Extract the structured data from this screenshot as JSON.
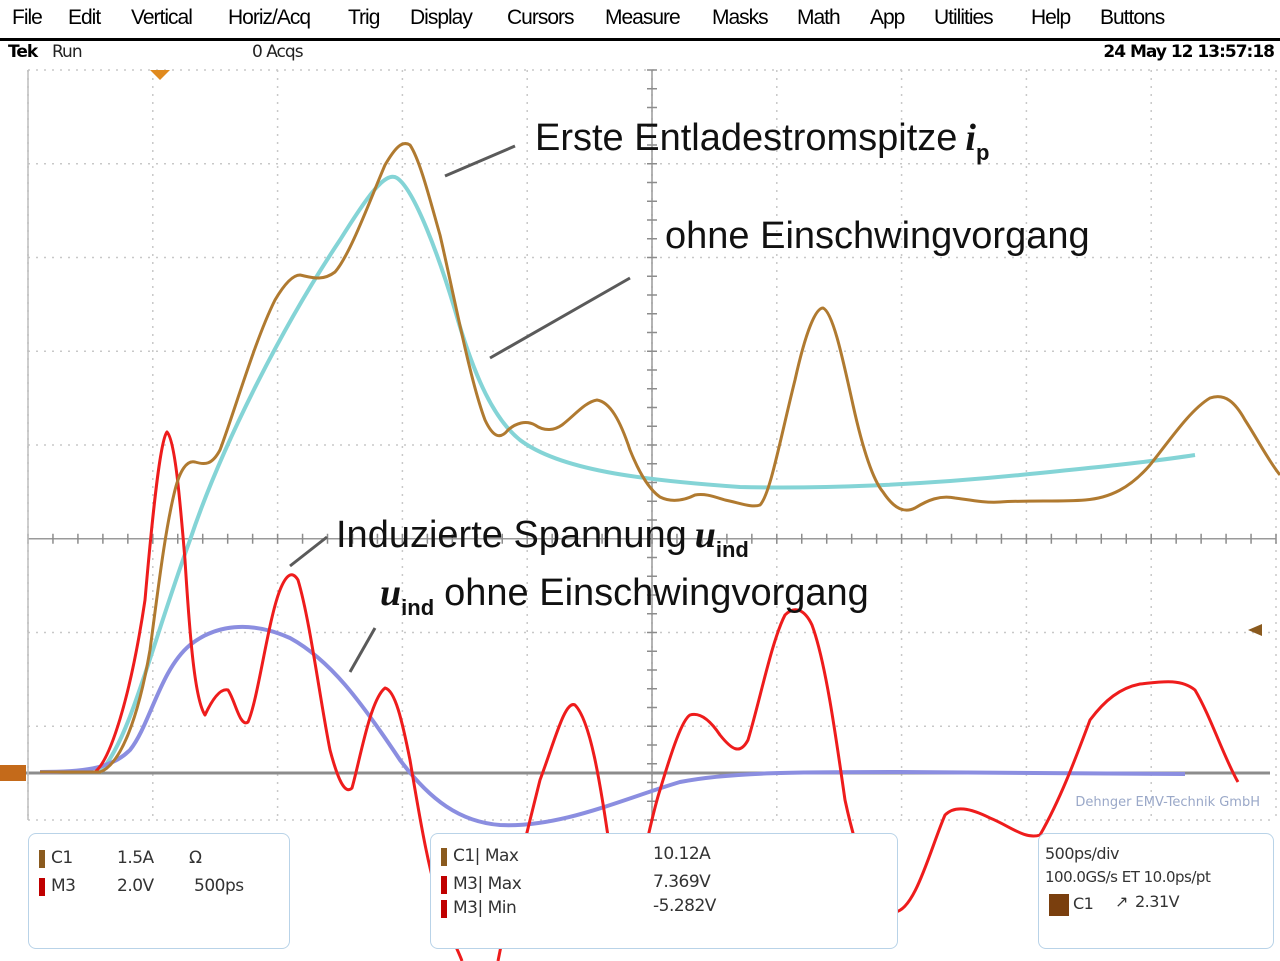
{
  "menu": {
    "items": [
      "File",
      "Edit",
      "Vertical",
      "Horiz/Acq",
      "Trig",
      "Display",
      "Cursors",
      "Measure",
      "Masks",
      "Math",
      "App",
      "Utilities",
      "Help",
      "Buttons"
    ]
  },
  "status": {
    "brand": "Tek",
    "run_state": "Run",
    "acqs": "0 Acqs",
    "datetime": "24 May 12 13:57:18"
  },
  "annotations": {
    "peak_label": "Erste Entladestromspitze",
    "peak_symbol": "i",
    "peak_subscript": "p",
    "no_ringing_label": "ohne Einschwingvorgang",
    "induced_label": "Induzierte Spannung",
    "induced_symbol": "u",
    "induced_subscript": "ind",
    "induced_no_ringing_label": "ohne Einschwingvorgang",
    "watermark": "Dehnger EMV-Technik GmbH"
  },
  "readouts": {
    "channels": {
      "c1_label": "C1",
      "c1_scale": "1.5A",
      "c1_unit": "Ω",
      "m3_label": "M3",
      "m3_scale": "2.0V",
      "m3_time": "500ps"
    },
    "measurements": {
      "rows": [
        {
          "label": "C1| Max",
          "value": "10.12A"
        },
        {
          "label": "M3| Max",
          "value": "7.369V"
        },
        {
          "label": "M3| Min",
          "value": "-5.282V"
        }
      ]
    },
    "timebase": {
      "horizontal": "500ps/div",
      "sample": "100.0GS/s ET 10.0ps/pt",
      "trigger_source": "C1",
      "trigger_symbol": "↗",
      "trigger_level": "2.31V"
    }
  },
  "colors": {
    "grid": "#bdbdbd",
    "axis": "#8c8c8c",
    "c1_trace": "#b07a30",
    "c1_smooth": "#84d4d6",
    "m3_trace": "#ee1c1c",
    "m3_smooth": "#8b8ee0",
    "trigger_marker": "#e08a1e"
  }
}
